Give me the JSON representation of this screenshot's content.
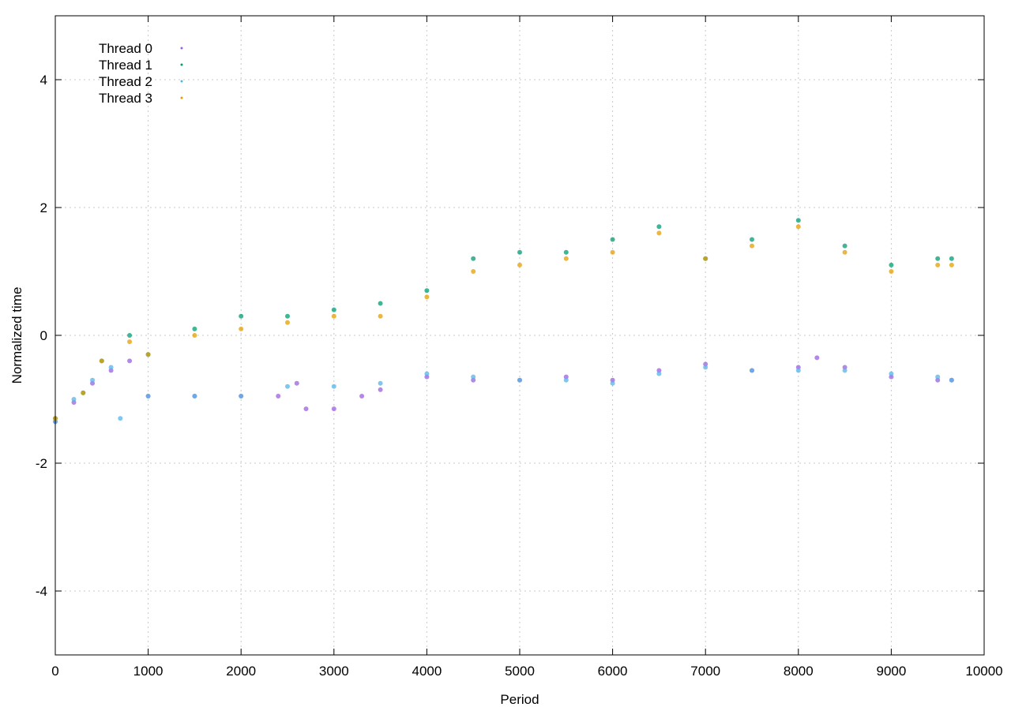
{
  "chart_data": {
    "type": "scatter",
    "xlabel": "Period",
    "ylabel": "Normalized time",
    "xlim": [
      0,
      10000
    ],
    "ylim": [
      -5,
      5
    ],
    "xticks": [
      0,
      1000,
      2000,
      3000,
      4000,
      5000,
      6000,
      7000,
      8000,
      9000,
      10000
    ],
    "yticks": [
      -4,
      -2,
      0,
      2,
      4
    ],
    "grid": true,
    "legend_position": "top-left",
    "series": [
      {
        "name": "Thread 0",
        "color": "#9b5fe0",
        "points": [
          [
            0,
            -1.35
          ],
          [
            200,
            -1.05
          ],
          [
            400,
            -0.75
          ],
          [
            600,
            -0.55
          ],
          [
            800,
            -0.4
          ],
          [
            1000,
            -0.95
          ],
          [
            1500,
            -0.95
          ],
          [
            2000,
            -0.95
          ],
          [
            2400,
            -0.95
          ],
          [
            2600,
            -0.75
          ],
          [
            2700,
            -1.15
          ],
          [
            3000,
            -1.15
          ],
          [
            3300,
            -0.95
          ],
          [
            3500,
            -0.85
          ],
          [
            4000,
            -0.65
          ],
          [
            4500,
            -0.7
          ],
          [
            5000,
            -0.7
          ],
          [
            5500,
            -0.65
          ],
          [
            6000,
            -0.7
          ],
          [
            6500,
            -0.55
          ],
          [
            7000,
            -0.45
          ],
          [
            7500,
            -0.55
          ],
          [
            8000,
            -0.5
          ],
          [
            8200,
            -0.35
          ],
          [
            8500,
            -0.5
          ],
          [
            9000,
            -0.65
          ],
          [
            9500,
            -0.7
          ],
          [
            9650,
            -0.7
          ]
        ]
      },
      {
        "name": "Thread 1",
        "color": "#009e73",
        "points": [
          [
            0,
            -1.3
          ],
          [
            300,
            -0.9
          ],
          [
            500,
            -0.4
          ],
          [
            800,
            0.0
          ],
          [
            1000,
            -0.3
          ],
          [
            1500,
            0.1
          ],
          [
            2000,
            0.3
          ],
          [
            2500,
            0.3
          ],
          [
            3000,
            0.4
          ],
          [
            3500,
            0.5
          ],
          [
            4000,
            0.7
          ],
          [
            4500,
            1.2
          ],
          [
            5000,
            1.3
          ],
          [
            5500,
            1.3
          ],
          [
            6000,
            1.5
          ],
          [
            6500,
            1.7
          ],
          [
            7000,
            1.2
          ],
          [
            7500,
            1.5
          ],
          [
            8000,
            1.8
          ],
          [
            8500,
            1.4
          ],
          [
            9000,
            1.1
          ],
          [
            9500,
            1.2
          ],
          [
            9650,
            1.2
          ]
        ]
      },
      {
        "name": "Thread 2",
        "color": "#56b4e9",
        "points": [
          [
            0,
            -1.35
          ],
          [
            200,
            -1.0
          ],
          [
            400,
            -0.7
          ],
          [
            600,
            -0.5
          ],
          [
            700,
            -1.3
          ],
          [
            1000,
            -0.95
          ],
          [
            1500,
            -0.95
          ],
          [
            2000,
            -0.95
          ],
          [
            2500,
            -0.8
          ],
          [
            3000,
            -0.8
          ],
          [
            3500,
            -0.75
          ],
          [
            4000,
            -0.6
          ],
          [
            4500,
            -0.65
          ],
          [
            5000,
            -0.7
          ],
          [
            5500,
            -0.7
          ],
          [
            6000,
            -0.75
          ],
          [
            6500,
            -0.6
          ],
          [
            7000,
            -0.5
          ],
          [
            7500,
            -0.55
          ],
          [
            8000,
            -0.55
          ],
          [
            8500,
            -0.55
          ],
          [
            9000,
            -0.6
          ],
          [
            9500,
            -0.65
          ],
          [
            9650,
            -0.7
          ]
        ]
      },
      {
        "name": "Thread 3",
        "color": "#e69f00",
        "points": [
          [
            0,
            -1.3
          ],
          [
            300,
            -0.9
          ],
          [
            500,
            -0.4
          ],
          [
            800,
            -0.1
          ],
          [
            1000,
            -0.3
          ],
          [
            1500,
            0.0
          ],
          [
            2000,
            0.1
          ],
          [
            2500,
            0.2
          ],
          [
            3000,
            0.3
          ],
          [
            3500,
            0.3
          ],
          [
            4000,
            0.6
          ],
          [
            4500,
            1.0
          ],
          [
            5000,
            1.1
          ],
          [
            5500,
            1.2
          ],
          [
            6000,
            1.3
          ],
          [
            6500,
            1.6
          ],
          [
            7000,
            1.2
          ],
          [
            7500,
            1.4
          ],
          [
            8000,
            1.7
          ],
          [
            8500,
            1.3
          ],
          [
            9000,
            1.0
          ],
          [
            9500,
            1.1
          ],
          [
            9650,
            1.1
          ]
        ]
      }
    ]
  }
}
